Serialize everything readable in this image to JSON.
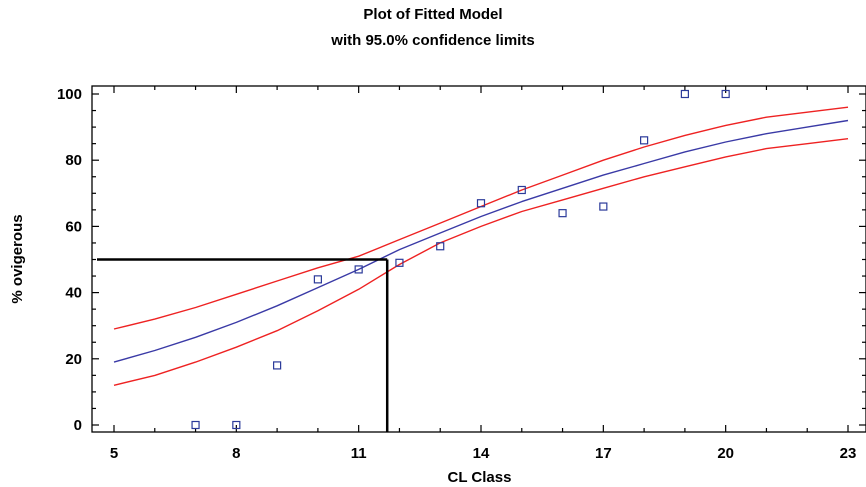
{
  "chart_data": {
    "type": "line",
    "title": "Plot of Fitted Model",
    "subtitle": "with 95.0% confidence limits",
    "xlabel": "CL Class",
    "ylabel": "% ovigerous",
    "xlim": [
      5,
      23
    ],
    "ylim": [
      0,
      100
    ],
    "xticks": [
      5,
      8,
      11,
      14,
      17,
      20,
      23
    ],
    "yticks": [
      0,
      20,
      40,
      60,
      80,
      100
    ],
    "grid": false,
    "colors": {
      "fitted": "#3a3aa6",
      "limits": "#ee2222",
      "points": "#2b3a9a",
      "reference": "#000000"
    },
    "series": [
      {
        "role": "fitted",
        "x": [
          5,
          6,
          7,
          8,
          9,
          10,
          11,
          12,
          13,
          14,
          15,
          16,
          17,
          18,
          19,
          20,
          21,
          22,
          23
        ],
        "y": [
          19,
          22.5,
          26.5,
          31,
          36,
          41.5,
          47,
          53,
          58,
          63,
          67.5,
          71.5,
          75.5,
          79,
          82.5,
          85.5,
          88,
          90,
          92
        ]
      },
      {
        "role": "upper-limit",
        "x": [
          5,
          6,
          7,
          8,
          9,
          10,
          11,
          12,
          13,
          14,
          15,
          16,
          17,
          18,
          19,
          20,
          21,
          22,
          23
        ],
        "y": [
          29,
          32,
          35.5,
          39.5,
          43.5,
          47.5,
          51,
          56,
          61,
          66,
          71,
          75.5,
          80,
          84,
          87.5,
          90.5,
          93,
          94.5,
          96
        ]
      },
      {
        "role": "lower-limit",
        "x": [
          5,
          6,
          7,
          8,
          9,
          10,
          11,
          12,
          13,
          14,
          15,
          16,
          17,
          18,
          19,
          20,
          21,
          22,
          23
        ],
        "y": [
          12,
          15,
          19,
          23.5,
          28.5,
          34.5,
          41,
          48.5,
          55,
          60,
          64.5,
          68,
          71.5,
          75,
          78,
          81,
          83.5,
          85,
          86.5
        ]
      }
    ],
    "points": {
      "x": [
        7,
        8,
        9,
        10,
        11,
        12,
        13,
        14,
        15,
        16,
        17,
        18,
        19,
        20
      ],
      "y": [
        0,
        0,
        18,
        44,
        47,
        49,
        54,
        67,
        71,
        64,
        66,
        86,
        100,
        100
      ]
    },
    "reference_lines": {
      "y_level": 50,
      "x_at_level": 11.7
    }
  }
}
